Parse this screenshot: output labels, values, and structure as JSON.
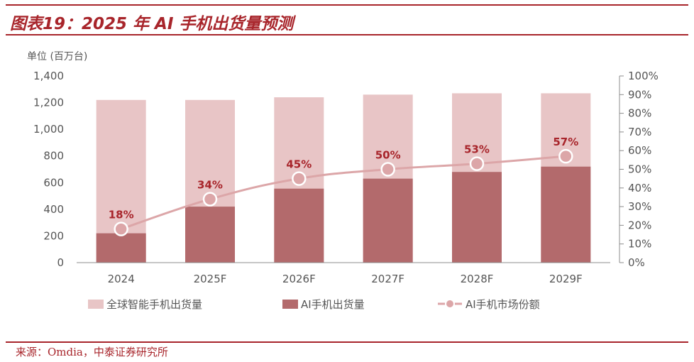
{
  "header": {
    "title": "图表19：2025 年 AI 手机出货量预测"
  },
  "footer": {
    "source": "来源：Omdia，中泰证券研究所"
  },
  "colors": {
    "total_bar": "#e8c5c6",
    "ai_bar": "#b36a6c",
    "line": "#dca6a8",
    "label": "#a8252b",
    "rule": "#a8252b"
  },
  "chart_data": {
    "type": "bar",
    "title": "2025 年 AI 手机出货量预测",
    "unit_label": "单位 (百万台)",
    "categories": [
      "2024",
      "2025F",
      "2026F",
      "2027F",
      "2028F",
      "2029F"
    ],
    "series": [
      {
        "name": "全球智能手机出货量",
        "kind": "bar",
        "axis": "left",
        "values": [
          1220,
          1220,
          1240,
          1260,
          1270,
          1270
        ]
      },
      {
        "name": "AI手机出货量",
        "kind": "bar",
        "axis": "left",
        "values": [
          220,
          420,
          555,
          630,
          680,
          720
        ]
      },
      {
        "name": "AI手机市场份额",
        "kind": "line",
        "axis": "right",
        "values": [
          18,
          34,
          45,
          50,
          53,
          57
        ],
        "data_labels": [
          "18%",
          "34%",
          "45%",
          "50%",
          "53%",
          "57%"
        ]
      }
    ],
    "y_left": {
      "min": 0,
      "max": 1400,
      "ticks": [
        0,
        200,
        400,
        600,
        800,
        1000,
        1200,
        1400
      ],
      "tick_labels": [
        "0",
        "200",
        "400",
        "600",
        "800",
        "1,000",
        "1,200",
        "1,400"
      ]
    },
    "y_right": {
      "min": 0,
      "max": 100,
      "ticks": [
        0,
        10,
        20,
        30,
        40,
        50,
        60,
        70,
        80,
        90,
        100
      ],
      "tick_labels": [
        "0%",
        "10%",
        "20%",
        "30%",
        "40%",
        "50%",
        "60%",
        "70%",
        "80%",
        "90%",
        "100%"
      ]
    },
    "grid": false,
    "legend_position": "bottom"
  }
}
